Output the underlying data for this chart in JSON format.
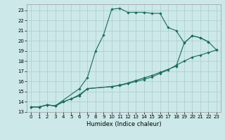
{
  "xlabel": "Humidex (Indice chaleur)",
  "background_color": "#cce8e8",
  "grid_color": "#aacccc",
  "line_color": "#1a6b5a",
  "xlim_min": -0.5,
  "xlim_max": 23.5,
  "ylim_min": 13,
  "ylim_max": 23.6,
  "yticks": [
    13,
    14,
    15,
    16,
    17,
    18,
    19,
    20,
    21,
    22,
    23
  ],
  "xticks": [
    0,
    1,
    2,
    3,
    4,
    5,
    6,
    7,
    8,
    9,
    10,
    11,
    12,
    13,
    14,
    15,
    16,
    17,
    18,
    19,
    20,
    21,
    22,
    23
  ],
  "curve1_x": [
    0,
    1,
    2,
    3,
    6,
    7,
    8,
    9,
    10,
    11,
    12,
    13,
    14,
    15,
    16,
    17,
    18,
    19,
    20,
    21,
    22
  ],
  "curve1_y": [
    13.5,
    13.5,
    13.7,
    13.6,
    15.3,
    16.4,
    19.0,
    20.6,
    23.1,
    23.2,
    22.8,
    22.8,
    22.8,
    22.7,
    22.7,
    21.3,
    21.0,
    19.8,
    20.5,
    20.3,
    19.9
  ],
  "curve2_x": [
    0,
    1,
    2,
    3,
    4,
    5,
    6,
    7,
    10,
    11,
    12,
    13,
    14,
    15,
    16,
    17,
    18,
    19,
    20,
    21,
    22,
    23
  ],
  "curve2_y": [
    13.5,
    13.5,
    13.7,
    13.6,
    14.0,
    14.3,
    14.6,
    15.3,
    15.5,
    15.6,
    15.8,
    16.0,
    16.2,
    16.45,
    16.8,
    17.15,
    17.6,
    18.0,
    18.4,
    18.6,
    18.85,
    19.1
  ],
  "curve3_x": [
    0,
    1,
    2,
    3,
    4,
    5,
    6,
    7,
    10,
    11,
    12,
    13,
    14,
    15,
    16,
    18,
    19,
    20,
    21,
    22,
    23
  ],
  "curve3_y": [
    13.5,
    13.5,
    13.7,
    13.6,
    14.0,
    14.3,
    14.7,
    15.3,
    15.5,
    15.65,
    15.85,
    16.1,
    16.35,
    16.6,
    16.9,
    17.5,
    19.8,
    20.5,
    20.3,
    19.9,
    19.1
  ],
  "xlabel_fontsize": 6.0,
  "tick_fontsize": 5.0
}
